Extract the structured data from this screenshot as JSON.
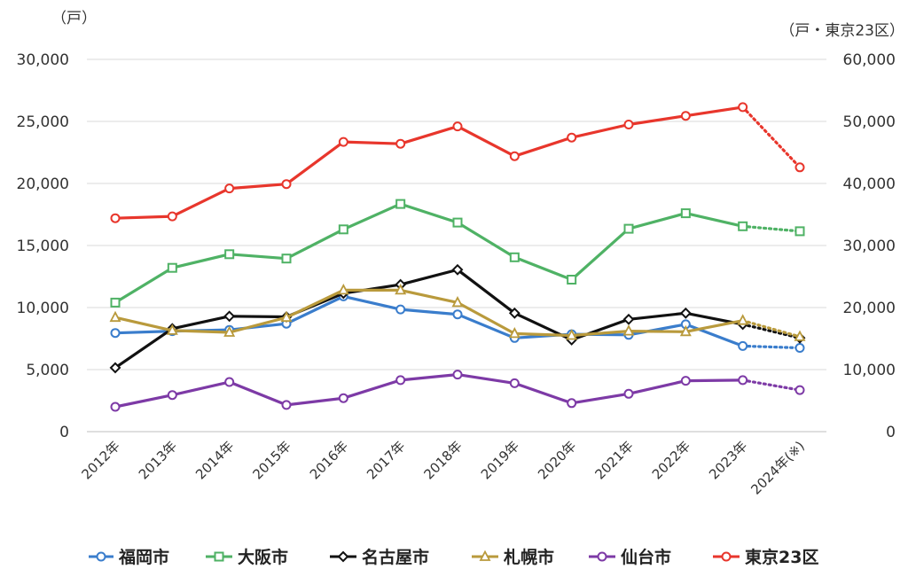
{
  "chart_data": {
    "type": "line",
    "left_unit": "（戸）",
    "right_unit": "（戸・東京23区）",
    "categories": [
      "2012年",
      "2013年",
      "2014年",
      "2015年",
      "2016年",
      "2017年",
      "2018年",
      "2019年",
      "2020年",
      "2021年",
      "2022年",
      "2023年",
      "2024年(※)"
    ],
    "y_left": {
      "min": 0,
      "max": 30000,
      "ticks": [
        "0",
        "5,000",
        "10,000",
        "15,000",
        "20,000",
        "25,000",
        "30,000"
      ]
    },
    "y_right": {
      "min": 0,
      "max": 60000,
      "ticks": [
        "0",
        "10,000",
        "20,000",
        "30,000",
        "40,000",
        "50,000",
        "60,000"
      ]
    },
    "grid": true,
    "legend_position": "bottom",
    "series": [
      {
        "name": "福岡市",
        "axis": "left",
        "color": "#3a7dcc",
        "marker": "circle",
        "values": [
          7950,
          8100,
          8200,
          8700,
          10900,
          9850,
          9450,
          7550,
          7850,
          7800,
          8650,
          6900,
          6750
        ]
      },
      {
        "name": "大阪市",
        "axis": "left",
        "color": "#4fb265",
        "marker": "square",
        "values": [
          10400,
          13200,
          14300,
          13950,
          16300,
          18350,
          16850,
          14050,
          12250,
          16350,
          17600,
          16550,
          16150
        ]
      },
      {
        "name": "名古屋市",
        "axis": "left",
        "color": "#111111",
        "marker": "diamond",
        "values": [
          5150,
          8300,
          9300,
          9250,
          11150,
          11850,
          13050,
          9550,
          7400,
          9050,
          9550,
          8650,
          7550
        ]
      },
      {
        "name": "札幌市",
        "axis": "left",
        "color": "#b99a3c",
        "marker": "triangle",
        "values": [
          9200,
          8150,
          8000,
          9200,
          11400,
          11400,
          10400,
          7900,
          7750,
          8100,
          8050,
          8950,
          7650
        ]
      },
      {
        "name": "仙台市",
        "axis": "left",
        "color": "#7d3aa6",
        "marker": "circle",
        "values": [
          2000,
          2950,
          4000,
          2150,
          2700,
          4150,
          4600,
          3900,
          2300,
          3050,
          4100,
          4150,
          3350
        ]
      },
      {
        "name": "東京23区",
        "axis": "right",
        "color": "#e8362c",
        "marker": "circle",
        "values": [
          34400,
          34700,
          39200,
          39900,
          46700,
          46400,
          49200,
          44400,
          47400,
          49500,
          50900,
          52300,
          42600
        ]
      }
    ]
  },
  "legend": {
    "fukuoka": "福岡市",
    "osaka": "大阪市",
    "nagoya": "名古屋市",
    "sapporo": "札幌市",
    "sendai": "仙台市",
    "tokyo": "東京23区"
  }
}
